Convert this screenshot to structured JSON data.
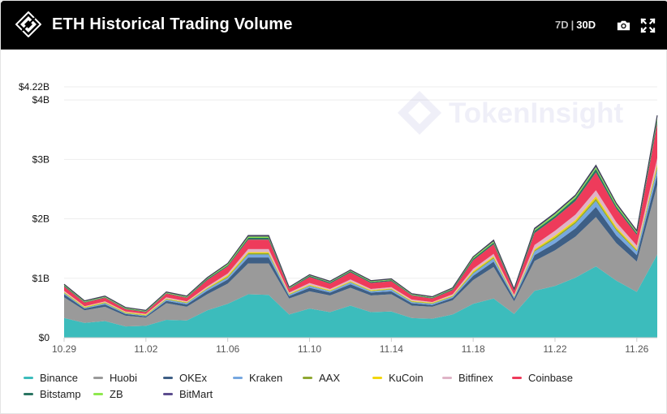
{
  "header": {
    "title": "ETH Historical Trading Volume",
    "range_7d": "7D",
    "range_sep": "|",
    "range_30d": "30D"
  },
  "watermark": "TokenInsight",
  "chart_data": {
    "type": "area",
    "stacked": true,
    "title": "ETH Historical Trading Volume",
    "unit": "USD",
    "ylim": [
      0,
      4220000000
    ],
    "y_max_label": "$4.22B",
    "y_ticks": [
      {
        "value": 0,
        "label": "$0"
      },
      {
        "value": 1000000000,
        "label": "$1B"
      },
      {
        "value": 2000000000,
        "label": "$2B"
      },
      {
        "value": 3000000000,
        "label": "$3B"
      },
      {
        "value": 4000000000,
        "label": "$4B"
      }
    ],
    "x_ticks": [
      {
        "index": 0,
        "label": "10.29"
      },
      {
        "index": 4,
        "label": "11.02"
      },
      {
        "index": 8,
        "label": "11.06"
      },
      {
        "index": 12,
        "label": "11.10"
      },
      {
        "index": 16,
        "label": "11.14"
      },
      {
        "index": 20,
        "label": "11.18"
      },
      {
        "index": 24,
        "label": "11.22"
      },
      {
        "index": 28,
        "label": "11.26"
      }
    ],
    "categories": [
      "10.29",
      "10.30",
      "10.31",
      "11.01",
      "11.02",
      "11.03",
      "11.04",
      "11.05",
      "11.06",
      "11.07",
      "11.08",
      "11.09",
      "11.10",
      "11.11",
      "11.12",
      "11.13",
      "11.14",
      "11.15",
      "11.16",
      "11.17",
      "11.18",
      "11.19",
      "11.20",
      "11.21",
      "11.22",
      "11.23",
      "11.24",
      "11.25",
      "11.26",
      "11.27"
    ],
    "series": [
      {
        "name": "Binance",
        "color": "#3cbcbc",
        "values": [
          0.33,
          0.25,
          0.28,
          0.19,
          0.2,
          0.3,
          0.29,
          0.46,
          0.57,
          0.73,
          0.72,
          0.39,
          0.49,
          0.43,
          0.54,
          0.43,
          0.44,
          0.33,
          0.32,
          0.39,
          0.57,
          0.66,
          0.4,
          0.79,
          0.87,
          1.01,
          1.2,
          0.96,
          0.77,
          1.4
        ]
      },
      {
        "name": "Huobi",
        "color": "#9a9a9a",
        "values": [
          0.35,
          0.21,
          0.24,
          0.18,
          0.14,
          0.28,
          0.23,
          0.27,
          0.34,
          0.52,
          0.53,
          0.27,
          0.29,
          0.28,
          0.3,
          0.28,
          0.29,
          0.21,
          0.2,
          0.24,
          0.4,
          0.53,
          0.21,
          0.5,
          0.6,
          0.69,
          0.83,
          0.63,
          0.51,
          1.17
        ]
      },
      {
        "name": "OKEx",
        "color": "#3e5f85",
        "values": [
          0.05,
          0.03,
          0.04,
          0.03,
          0.02,
          0.04,
          0.04,
          0.06,
          0.07,
          0.1,
          0.1,
          0.04,
          0.06,
          0.05,
          0.06,
          0.05,
          0.05,
          0.04,
          0.03,
          0.04,
          0.07,
          0.09,
          0.05,
          0.1,
          0.12,
          0.14,
          0.17,
          0.13,
          0.11,
          0.17
        ]
      },
      {
        "name": "Kraken",
        "color": "#76a7e0",
        "values": [
          0.02,
          0.01,
          0.02,
          0.01,
          0.01,
          0.02,
          0.02,
          0.03,
          0.03,
          0.05,
          0.05,
          0.02,
          0.03,
          0.02,
          0.03,
          0.02,
          0.03,
          0.02,
          0.02,
          0.02,
          0.04,
          0.05,
          0.02,
          0.06,
          0.07,
          0.08,
          0.1,
          0.08,
          0.06,
          0.1
        ]
      },
      {
        "name": "AAX",
        "color": "#8fa832",
        "values": [
          0.01,
          0.01,
          0.01,
          0.01,
          0.01,
          0.01,
          0.01,
          0.01,
          0.02,
          0.02,
          0.02,
          0.01,
          0.01,
          0.01,
          0.01,
          0.01,
          0.01,
          0.01,
          0.01,
          0.01,
          0.02,
          0.02,
          0.01,
          0.02,
          0.03,
          0.03,
          0.04,
          0.03,
          0.02,
          0.04
        ]
      },
      {
        "name": "KuCoin",
        "color": "#f2d60f",
        "values": [
          0.01,
          0.01,
          0.01,
          0.01,
          0.01,
          0.01,
          0.01,
          0.01,
          0.02,
          0.02,
          0.02,
          0.01,
          0.01,
          0.01,
          0.01,
          0.01,
          0.01,
          0.01,
          0.01,
          0.01,
          0.02,
          0.02,
          0.01,
          0.02,
          0.03,
          0.03,
          0.04,
          0.03,
          0.02,
          0.04
        ]
      },
      {
        "name": "Bitfinex",
        "color": "#dfb4c7",
        "values": [
          0.02,
          0.01,
          0.01,
          0.01,
          0.01,
          0.02,
          0.01,
          0.02,
          0.03,
          0.05,
          0.05,
          0.02,
          0.03,
          0.02,
          0.03,
          0.02,
          0.02,
          0.02,
          0.01,
          0.02,
          0.04,
          0.04,
          0.02,
          0.07,
          0.08,
          0.09,
          0.1,
          0.08,
          0.06,
          0.1
        ]
      },
      {
        "name": "Coinbase",
        "color": "#ee3b5b",
        "values": [
          0.07,
          0.06,
          0.06,
          0.04,
          0.03,
          0.06,
          0.06,
          0.11,
          0.12,
          0.16,
          0.16,
          0.06,
          0.1,
          0.09,
          0.12,
          0.1,
          0.1,
          0.07,
          0.06,
          0.07,
          0.14,
          0.16,
          0.07,
          0.2,
          0.21,
          0.23,
          0.3,
          0.23,
          0.18,
          0.58
        ]
      },
      {
        "name": "Bitstamp",
        "color": "#2a7562",
        "values": [
          0.02,
          0.01,
          0.01,
          0.01,
          0.01,
          0.01,
          0.01,
          0.02,
          0.02,
          0.03,
          0.03,
          0.01,
          0.02,
          0.02,
          0.02,
          0.02,
          0.02,
          0.01,
          0.01,
          0.02,
          0.03,
          0.03,
          0.01,
          0.04,
          0.04,
          0.05,
          0.06,
          0.04,
          0.03,
          0.06
        ]
      },
      {
        "name": "ZB",
        "color": "#8ee84e",
        "values": [
          0.01,
          0.01,
          0.01,
          0.01,
          0.01,
          0.01,
          0.01,
          0.01,
          0.02,
          0.02,
          0.02,
          0.01,
          0.01,
          0.01,
          0.01,
          0.01,
          0.01,
          0.01,
          0.01,
          0.01,
          0.02,
          0.02,
          0.01,
          0.02,
          0.03,
          0.03,
          0.03,
          0.03,
          0.02,
          0.04
        ]
      },
      {
        "name": "BitMart",
        "color": "#5c4d8e",
        "values": [
          0.01,
          0.01,
          0.01,
          0.01,
          0.01,
          0.01,
          0.01,
          0.01,
          0.01,
          0.02,
          0.02,
          0.01,
          0.01,
          0.01,
          0.01,
          0.01,
          0.01,
          0.01,
          0.01,
          0.01,
          0.01,
          0.02,
          0.01,
          0.02,
          0.02,
          0.02,
          0.03,
          0.02,
          0.02,
          0.04
        ]
      }
    ]
  }
}
